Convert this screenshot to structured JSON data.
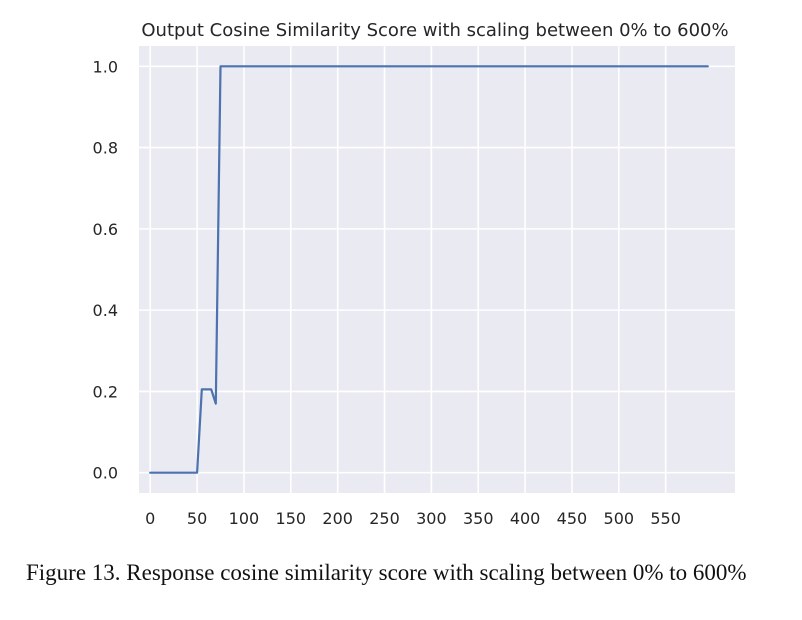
{
  "chart_data": {
    "type": "line",
    "title": "Output Cosine Similarity Score with scaling between 0% to 600%",
    "xlabel": "",
    "ylabel": "",
    "xlim": [
      -12,
      624
    ],
    "ylim": [
      -0.05,
      1.05
    ],
    "xticks": [
      0,
      50,
      100,
      150,
      200,
      250,
      300,
      350,
      400,
      450,
      500,
      550
    ],
    "xtick_labels": [
      "0",
      "50",
      "100",
      "150",
      "200",
      "250",
      "300",
      "350",
      "400",
      "450",
      "500",
      "550"
    ],
    "yticks": [
      0.0,
      0.2,
      0.4,
      0.6,
      0.8,
      1.0
    ],
    "ytick_labels": [
      "0.0",
      "0.2",
      "0.4",
      "0.6",
      "0.8",
      "1.0"
    ],
    "grid": true,
    "series": [
      {
        "color": "#4C72B0",
        "x": [
          0,
          50,
          55,
          65,
          70,
          75,
          595
        ],
        "y": [
          0.0,
          0.0,
          0.205,
          0.205,
          0.17,
          1.0,
          1.0
        ]
      }
    ]
  },
  "style": {
    "plot_bg": "#EAEAF2",
    "grid_color": "#FFFFFF",
    "text_color": "#262626"
  },
  "caption": "Figure 13. Response cosine similarity score with scaling between 0% to 600%"
}
